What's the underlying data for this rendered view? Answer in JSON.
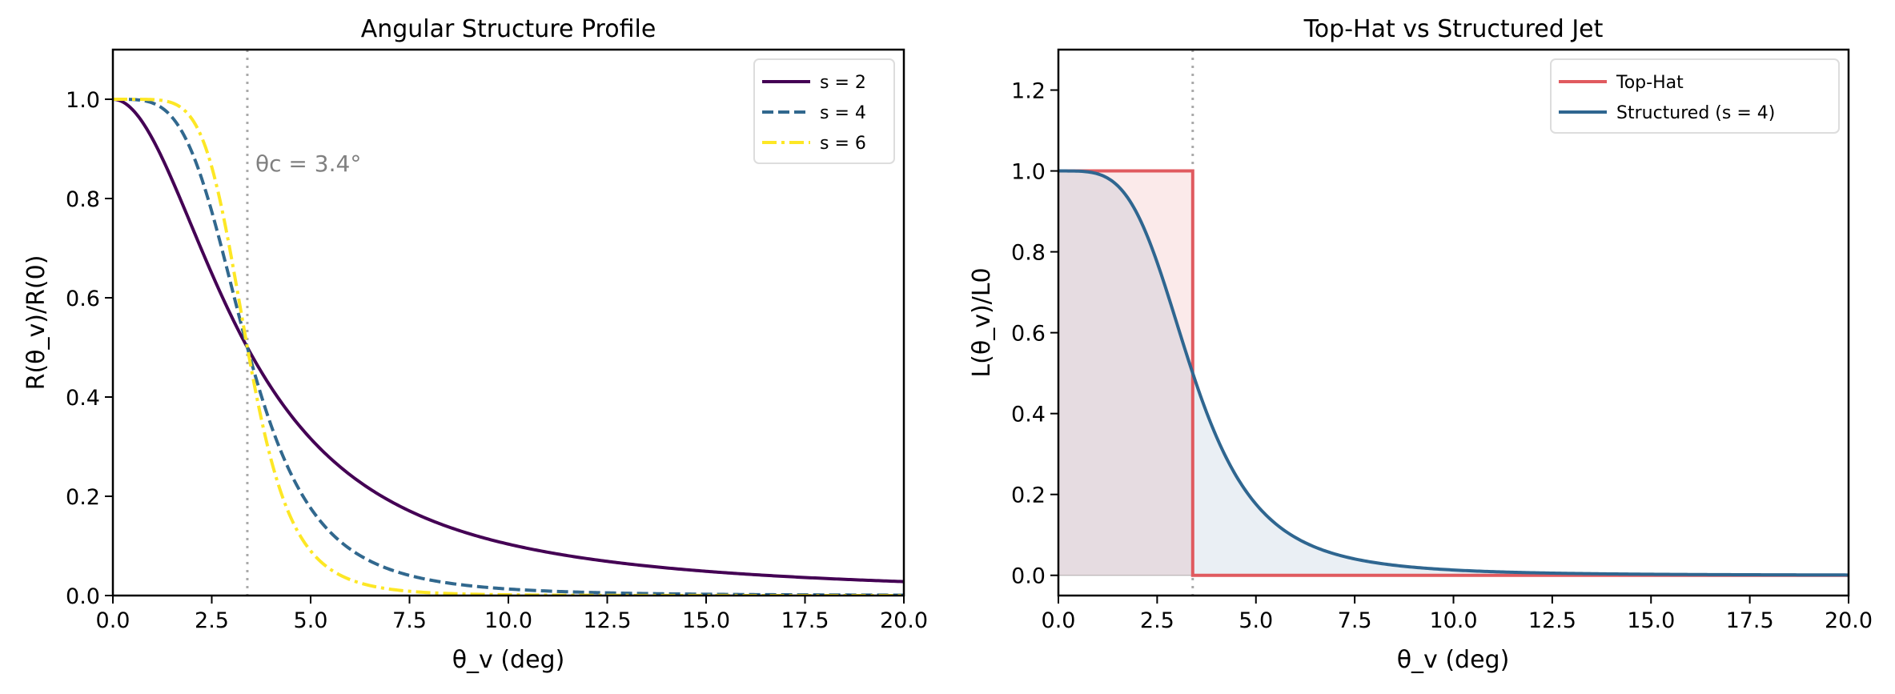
{
  "chart_data": [
    {
      "type": "line",
      "title": "Angular Structure Profile",
      "xlabel": "θ_v (deg)",
      "ylabel": "R(θ_v)/R(0)",
      "xlim": [
        0,
        20
      ],
      "ylim": [
        0,
        1.1
      ],
      "xticks": [
        "0.0",
        "2.5",
        "5.0",
        "7.5",
        "10.0",
        "12.5",
        "15.0",
        "17.5",
        "20.0"
      ],
      "yticks": [
        "0.0",
        "0.2",
        "0.4",
        "0.6",
        "0.8",
        "1.0"
      ],
      "grid": false,
      "legend_placement": "top-right",
      "theta_c": 3.4,
      "annotation": "θc = 3.4°",
      "function": "1/(1+(θ_v/θ_c)^s)",
      "series": [
        {
          "name": "s = 2",
          "s": 2,
          "color": "#440154",
          "style": "solid"
        },
        {
          "name": "s = 4",
          "s": 4,
          "color": "#31688e",
          "style": "dashed"
        },
        {
          "name": "s = 6",
          "s": 6,
          "color": "#fde725",
          "style": "dashdot"
        }
      ]
    },
    {
      "type": "line",
      "title": "Top-Hat vs Structured Jet",
      "xlabel": "θ_v (deg)",
      "ylabel": "L(θ_v)/L0",
      "xlim": [
        0,
        20
      ],
      "ylim": [
        -0.05,
        1.3
      ],
      "xticks": [
        "0.0",
        "2.5",
        "5.0",
        "7.5",
        "10.0",
        "12.5",
        "15.0",
        "17.5",
        "20.0"
      ],
      "yticks": [
        "0.0",
        "0.2",
        "0.4",
        "0.6",
        "0.8",
        "1.0",
        "1.2"
      ],
      "grid": false,
      "legend_placement": "top-right",
      "theta_c": 3.4,
      "series": [
        {
          "name": "Top-Hat",
          "color": "#e05a5f",
          "style": "solid",
          "filled": true,
          "function": "1 if θ_v ≤ θ_c else 0"
        },
        {
          "name": "Structured (s = 4)",
          "s": 4,
          "color": "#2f6690",
          "style": "solid",
          "filled": true,
          "function": "1/(1+(θ_v/θ_c)^4)"
        }
      ]
    }
  ]
}
